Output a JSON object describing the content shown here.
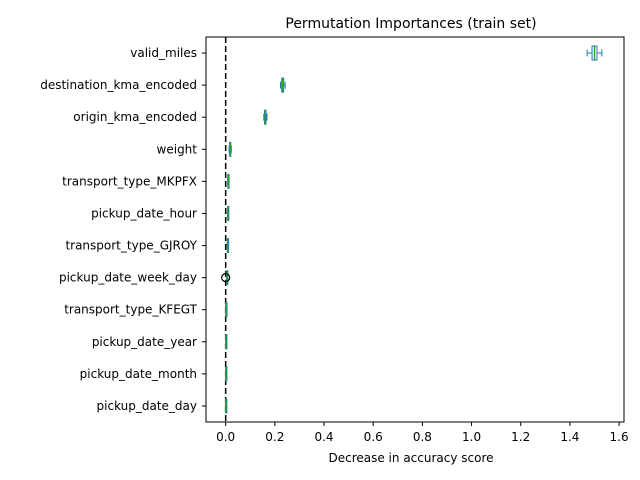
{
  "chart_data": {
    "type": "boxplot",
    "orientation": "horizontal",
    "title": "Permutation Importances (train set)",
    "xlabel": "Decrease in accuracy score",
    "ylabel": "",
    "xlim": [
      -0.08,
      1.62
    ],
    "x_ticks": [
      0.0,
      0.2,
      0.4,
      0.6,
      0.8,
      1.0,
      1.2,
      1.4,
      1.6
    ],
    "x_tick_labels": [
      "0.0",
      "0.2",
      "0.4",
      "0.6",
      "0.8",
      "1.0",
      "1.2",
      "1.4",
      "1.6"
    ],
    "reference_line": {
      "x": 0.0,
      "style": "dashed",
      "color": "#000000"
    },
    "box_color": "#1f77b4",
    "median_color": "#2ca02c",
    "grid": false,
    "features": [
      {
        "name": "valid_miles",
        "whisker_low": 1.47,
        "q1": 1.49,
        "median": 1.5,
        "q3": 1.51,
        "whisker_high": 1.53,
        "outliers": []
      },
      {
        "name": "destination_kma_encoded",
        "whisker_low": 0.223,
        "q1": 0.228,
        "median": 0.232,
        "q3": 0.236,
        "whisker_high": 0.242,
        "outliers": []
      },
      {
        "name": "origin_kma_encoded",
        "whisker_low": 0.155,
        "q1": 0.158,
        "median": 0.161,
        "q3": 0.164,
        "whisker_high": 0.168,
        "outliers": []
      },
      {
        "name": "weight",
        "whisker_low": 0.014,
        "q1": 0.016,
        "median": 0.018,
        "q3": 0.02,
        "whisker_high": 0.023,
        "outliers": []
      },
      {
        "name": "transport_type_MKPFX",
        "whisker_low": 0.008,
        "q1": 0.009,
        "median": 0.01,
        "q3": 0.011,
        "whisker_high": 0.012,
        "outliers": []
      },
      {
        "name": "pickup_date_hour",
        "whisker_low": 0.007,
        "q1": 0.008,
        "median": 0.009,
        "q3": 0.01,
        "whisker_high": 0.011,
        "outliers": []
      },
      {
        "name": "transport_type_GJROY",
        "whisker_low": 0.006,
        "q1": 0.007,
        "median": 0.008,
        "q3": 0.009,
        "whisker_high": 0.01,
        "outliers": []
      },
      {
        "name": "pickup_date_week_day",
        "whisker_low": 0.003,
        "q1": 0.004,
        "median": 0.005,
        "q3": 0.006,
        "whisker_high": 0.007,
        "outliers": [
          0.0
        ]
      },
      {
        "name": "transport_type_KFEGT",
        "whisker_low": 0.0,
        "q1": 0.0005,
        "median": 0.001,
        "q3": 0.0015,
        "whisker_high": 0.002,
        "outliers": []
      },
      {
        "name": "pickup_date_year",
        "whisker_low": 0.0,
        "q1": 0.0003,
        "median": 0.0006,
        "q3": 0.0009,
        "whisker_high": 0.0012,
        "outliers": []
      },
      {
        "name": "pickup_date_month",
        "whisker_low": 0.0,
        "q1": 0.0002,
        "median": 0.0004,
        "q3": 0.0006,
        "whisker_high": 0.0008,
        "outliers": []
      },
      {
        "name": "pickup_date_day",
        "whisker_low": -0.0005,
        "q1": -0.0002,
        "median": 0.0,
        "q3": 0.0002,
        "whisker_high": 0.0005,
        "outliers": []
      }
    ]
  }
}
